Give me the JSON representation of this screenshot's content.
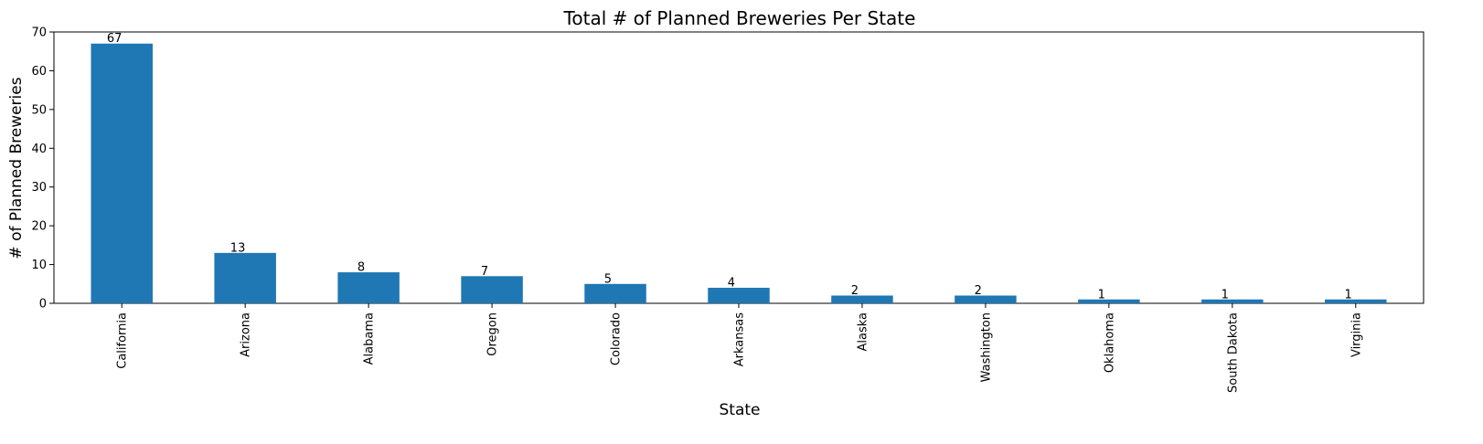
{
  "chart_data": {
    "type": "bar",
    "title": "Total # of Planned Breweries Per State",
    "xlabel": "State",
    "ylabel": "# of Planned Breweries",
    "categories": [
      "California",
      "Arizona",
      "Alabama",
      "Oregon",
      "Colorado",
      "Arkansas",
      "Alaska",
      "Washington",
      "Oklahoma",
      "South Dakota",
      "Virginia"
    ],
    "values": [
      67,
      13,
      8,
      7,
      5,
      4,
      2,
      2,
      1,
      1,
      1
    ],
    "data_labels": [
      "67",
      "13",
      "8",
      "7",
      "5",
      "4",
      "2",
      "2",
      "1",
      "1",
      "1"
    ],
    "ylim": [
      0,
      70
    ],
    "yticks": [
      0,
      10,
      20,
      30,
      40,
      50,
      60,
      70
    ],
    "ytick_labels": [
      "0",
      "10",
      "20",
      "30",
      "40",
      "50",
      "60",
      "70"
    ],
    "bar_color": "#1f77b4",
    "grid": false,
    "legend": "none"
  }
}
